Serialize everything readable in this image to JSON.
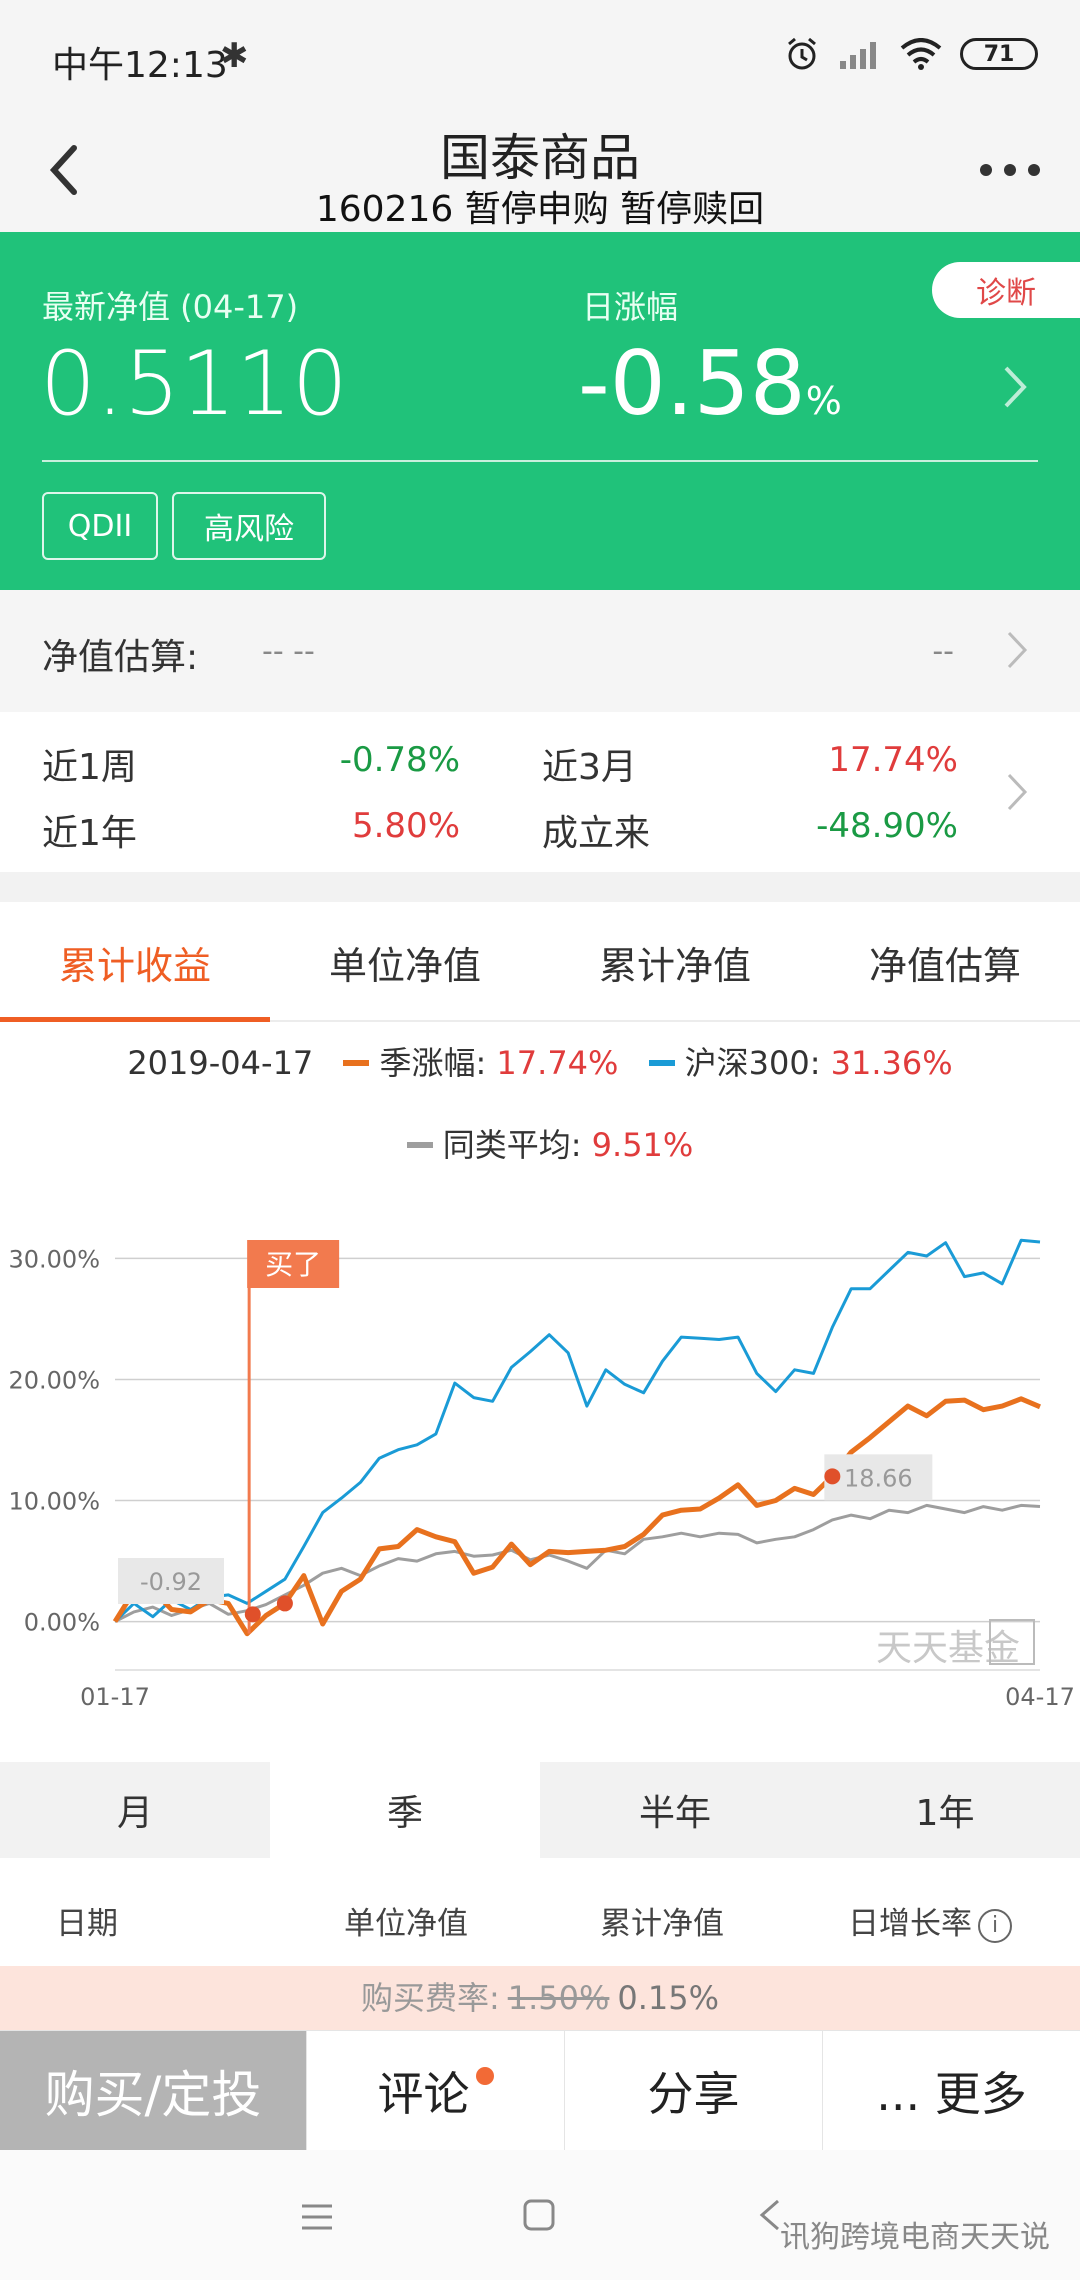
{
  "status_bar": {
    "time": "中午12:13",
    "battery": "71"
  },
  "header": {
    "title": "国泰商品",
    "subtitle": "160216 暂停申购 暂停赎回"
  },
  "summary": {
    "nav_label": "最新净值 (04-17)",
    "nav_value": "0.5110",
    "day_change_label": "日涨幅",
    "day_change_value": "-0.58",
    "day_change_unit": "%",
    "diagnose_label": "诊断",
    "tags": [
      "QDII",
      "高风险"
    ]
  },
  "estimate": {
    "label": "净值估算:",
    "value": "-- --",
    "right_value": "--"
  },
  "performance": {
    "week_label": "近1周",
    "week_value": "-0.78%",
    "quarter_label": "近3月",
    "quarter_value": "17.74%",
    "year_label": "近1年",
    "year_value": "5.80%",
    "since_label": "成立来",
    "since_value": "-48.90%"
  },
  "chart_tabs": [
    "累计收益",
    "单位净值",
    "累计净值",
    "净值估算"
  ],
  "legend": {
    "date": "2019-04-17",
    "series_fund": "季涨幅:",
    "series_fund_value": "17.74%",
    "series_index": "沪深300:",
    "series_index_value": "31.36%",
    "series_avg": "同类平均:",
    "series_avg_value": "9.51%"
  },
  "chart_annotations": {
    "buy_label": "买了",
    "start_value": "-0.92",
    "point_value": "18.66",
    "brand": "天天基金"
  },
  "chart_data": {
    "type": "line",
    "xlabel": "",
    "ylabel": "",
    "x_tick_labels": [
      "01-17",
      "04-17"
    ],
    "y_tick_labels": [
      "30.00%",
      "20.00%",
      "10.00%",
      "0.00%"
    ],
    "ylim": [
      -4,
      34
    ],
    "grid": true,
    "series": [
      {
        "name": "季涨幅",
        "color": "#e8711e",
        "values": [
          0,
          2.5,
          2.6,
          1.0,
          0.8,
          1.8,
          1.5,
          -1.0,
          0.5,
          1.5,
          3.8,
          -0.2,
          2.5,
          3.5,
          6.0,
          6.2,
          7.6,
          7.0,
          6.6,
          4.0,
          4.5,
          6.4,
          4.7,
          5.8,
          5.7,
          5.8,
          5.9,
          6.2,
          7.2,
          8.8,
          9.2,
          9.3,
          10.2,
          11.3,
          9.6,
          10.0,
          11.0,
          10.5,
          12.0,
          14.0,
          15.2,
          16.5,
          17.8,
          17.0,
          18.2,
          18.3,
          17.5,
          17.8,
          18.4,
          17.74
        ]
      },
      {
        "name": "沪深300",
        "color": "#1a9bd6",
        "values": [
          0,
          1.5,
          0.4,
          1.8,
          1.0,
          2.0,
          2.2,
          1.5,
          2.5,
          3.5,
          6.2,
          9.0,
          10.2,
          11.5,
          13.5,
          14.2,
          14.6,
          15.5,
          19.7,
          18.5,
          18.2,
          21.0,
          22.3,
          23.7,
          22.2,
          17.8,
          20.8,
          19.6,
          18.9,
          21.5,
          23.5,
          23.4,
          23.3,
          23.5,
          20.5,
          19.0,
          20.8,
          20.5,
          24.3,
          27.5,
          27.5,
          29.0,
          30.5,
          30.2,
          31.3,
          28.5,
          28.8,
          27.9,
          31.5,
          31.36
        ]
      },
      {
        "name": "同类平均",
        "color": "#9e9e9e",
        "values": [
          0,
          0.8,
          1.2,
          0.5,
          1.0,
          1.5,
          0.6,
          0.9,
          1.4,
          2.2,
          3.0,
          4.0,
          4.4,
          3.8,
          4.6,
          5.2,
          5.0,
          5.6,
          5.8,
          5.4,
          5.5,
          5.9,
          5.1,
          5.5,
          5.0,
          4.4,
          5.9,
          5.6,
          6.8,
          7.0,
          7.3,
          7.0,
          7.3,
          7.2,
          6.5,
          6.8,
          7.0,
          7.6,
          8.4,
          8.8,
          8.5,
          9.2,
          9.0,
          9.6,
          9.3,
          9.0,
          9.5,
          9.2,
          9.6,
          9.51
        ]
      }
    ]
  },
  "range_tabs": [
    "月",
    "季",
    "半年",
    "1年"
  ],
  "table_header": {
    "date": "日期",
    "unit_nav": "单位净值",
    "acc_nav": "累计净值",
    "daily_growth": "日增长率"
  },
  "fee": {
    "label": "购买费率:",
    "original": "1.50%",
    "current": "0.15%"
  },
  "bottom_actions": {
    "buy": "购买/定投",
    "comment": "评论",
    "share": "分享",
    "more": "... 更多"
  },
  "watermark": "讯狗跨境电商天天说",
  "colors": {
    "brand_green": "#20c27a",
    "accent_orange": "#ef5e24",
    "up_red": "#e03c3c",
    "down_green": "#1a9a44"
  }
}
